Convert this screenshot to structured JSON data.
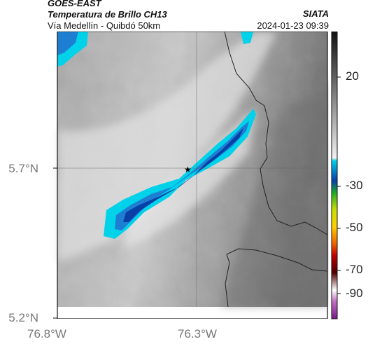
{
  "header": {
    "satellite": "GOES-EAST",
    "product": "Temperatura de Brillo CH13",
    "region": "Vía Medellín - Quibdó 50km",
    "brand": "SIATA",
    "timestamp": "2024-01-23 09:39"
  },
  "axes": {
    "lat_ticks": [
      "5.7°N",
      "5.2°N"
    ],
    "lon_ticks": [
      "76.8°W",
      "76.3°W"
    ]
  },
  "colorbar": {
    "ticks": [
      "20",
      "-30",
      "-50",
      "-70",
      "-90"
    ]
  },
  "marker": {
    "name": "station-star",
    "symbol": "★"
  },
  "colors": {
    "cold_cyan": "#00d2ea",
    "cold_blue": "#0a3fa8",
    "warm_gray": "#8a8a8a"
  }
}
